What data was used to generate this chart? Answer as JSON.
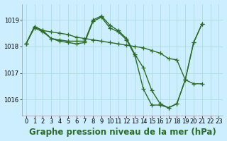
{
  "title": "Graphe pression niveau de la mer (hPa)",
  "bg_color": "#cceeff",
  "grid_color": "#aadddd",
  "line_color": "#2d6a2d",
  "x_ticks": [
    0,
    1,
    2,
    3,
    4,
    5,
    6,
    7,
    8,
    9,
    10,
    11,
    12,
    13,
    14,
    15,
    16,
    17,
    18,
    19,
    20,
    21,
    22,
    23
  ],
  "ylim": [
    1015.4,
    1019.6
  ],
  "yticks": [
    1016,
    1017,
    1018,
    1019
  ],
  "series": [
    [
      1018.1,
      1018.75,
      1018.6,
      1018.55,
      1018.5,
      1018.45,
      1018.35,
      1018.3,
      1018.25,
      1018.2,
      1018.15,
      1018.1,
      1018.05,
      1018.0,
      1017.95,
      1017.85,
      1017.75,
      1017.55,
      1017.5,
      1016.75,
      1016.6,
      1016.6,
      null,
      null
    ],
    [
      1018.1,
      1018.75,
      1018.6,
      1018.3,
      1018.25,
      1018.2,
      1018.2,
      1018.2,
      1019.0,
      1019.15,
      1018.8,
      1018.6,
      1018.3,
      1017.7,
      1017.2,
      1016.35,
      1015.85,
      1015.7,
      1015.85,
      1016.75,
      1018.15,
      1018.85,
      null,
      null
    ],
    [
      1018.1,
      1018.7,
      1018.55,
      1018.3,
      1018.2,
      1018.15,
      1018.1,
      1018.15,
      1018.95,
      1019.1,
      1018.7,
      1018.55,
      1018.25,
      1017.65,
      1016.4,
      1015.8,
      1015.8,
      1015.7,
      1015.85,
      1016.75,
      1018.15,
      1018.85,
      null,
      null
    ]
  ],
  "marker": "+",
  "marker_size": 4,
  "line_width": 1.0,
  "title_fontsize": 8.5,
  "tick_fontsize": 6
}
